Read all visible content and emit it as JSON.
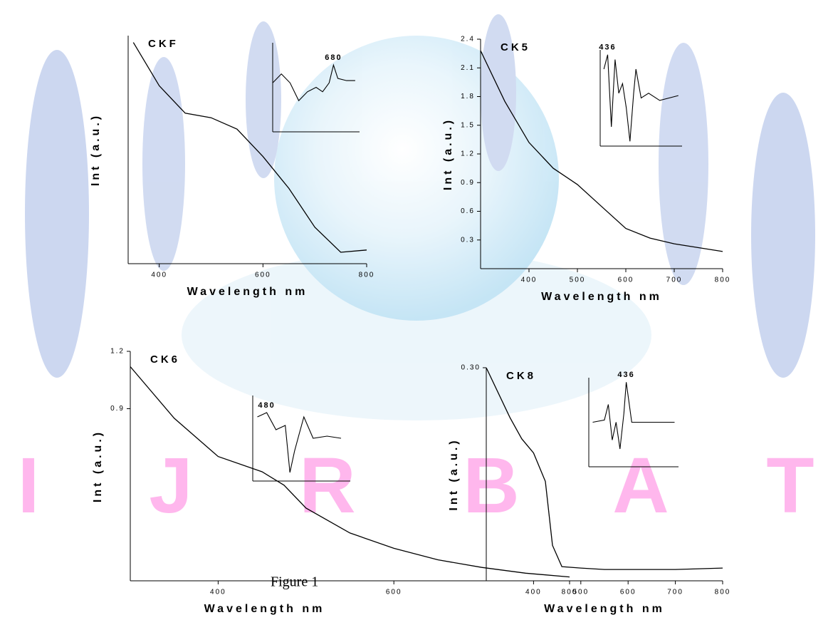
{
  "caption": "Figure 1",
  "watermark": [
    "I",
    "J",
    "R",
    "B",
    "A",
    "T"
  ],
  "chart_data": [
    {
      "type": "line",
      "title": "CKF",
      "x_label": "Wavelength nm",
      "y_label": "Int (a.u.)",
      "color": "#000000",
      "x": [
        350,
        400,
        450,
        500,
        550,
        600,
        650,
        700,
        750,
        800
      ],
      "values": [
        0.97,
        0.78,
        0.66,
        0.64,
        0.59,
        0.47,
        0.33,
        0.16,
        0.05,
        0.06
      ],
      "xlim": [
        340,
        800
      ],
      "xticks": [
        400,
        600,
        800
      ],
      "ylim": [
        0,
        1
      ],
      "inset": {
        "x": [
          400,
          440,
          480,
          520,
          560,
          600,
          630,
          660,
          680,
          700,
          740,
          780
        ],
        "values": [
          0.1,
          0.3,
          0.1,
          -0.3,
          -0.1,
          0,
          -0.1,
          0.1,
          0.5,
          0.2,
          0.15,
          0.15
        ],
        "xlim": [
          400,
          800
        ],
        "ylim": [
          -1,
          1
        ],
        "annotation": "680"
      }
    },
    {
      "type": "line",
      "title": "CK5",
      "x_label": "Wavelength nm",
      "y_label": "Int (a.u.)",
      "color": "#000000",
      "x": [
        300,
        350,
        400,
        450,
        500,
        550,
        600,
        650,
        700,
        750,
        800
      ],
      "values": [
        2.28,
        1.75,
        1.32,
        1.05,
        0.88,
        0.65,
        0.42,
        0.32,
        0.26,
        0.22,
        0.18
      ],
      "xlim": [
        300,
        800
      ],
      "xticks": [
        400,
        500,
        600,
        700,
        800
      ],
      "ylim": [
        0,
        2.4
      ],
      "yticks": [
        0.3,
        0.6,
        0.9,
        1.2,
        1.5,
        1.8,
        2.1,
        2.4
      ],
      "inset": {
        "x": [
          350,
          360,
          370,
          380,
          390,
          400,
          410,
          420,
          430,
          436,
          450,
          470,
          500,
          550
        ],
        "values": [
          0.6,
          0.9,
          -0.6,
          0.8,
          0.1,
          0.3,
          -0.2,
          -0.9,
          0.1,
          0.6,
          0.0,
          0.1,
          -0.05,
          0.05
        ],
        "xlim": [
          340,
          560
        ],
        "ylim": [
          -1,
          1
        ],
        "annotation": "436"
      }
    },
    {
      "type": "line",
      "title": "CK6",
      "x_label": "Wavelength nm",
      "y_label": "Int (a.u.)",
      "color": "#000000",
      "x": [
        300,
        350,
        400,
        450,
        475,
        500,
        550,
        600,
        650,
        700,
        750,
        800
      ],
      "values": [
        1.12,
        0.85,
        0.65,
        0.57,
        0.5,
        0.38,
        0.25,
        0.17,
        0.11,
        0.07,
        0.04,
        0.02
      ],
      "xlim": [
        300,
        800
      ],
      "xticks": [
        400,
        600,
        800
      ],
      "ylim": [
        0,
        1.2
      ],
      "yticks": [
        0.9,
        1.2
      ],
      "inset": {
        "x": [
          380,
          400,
          420,
          440,
          450,
          460,
          470,
          480,
          500,
          530,
          560
        ],
        "values": [
          0.5,
          0.6,
          0.2,
          0.3,
          -0.8,
          -0.3,
          0.1,
          0.5,
          0.0,
          0.05,
          0.0
        ],
        "xlim": [
          370,
          580
        ],
        "ylim": [
          -1,
          1
        ],
        "annotation": "480"
      }
    },
    {
      "type": "line",
      "title": "CK8",
      "x_label": "Wavelength nm",
      "y_label": "Int (a.u.)",
      "color": "#000000",
      "x": [
        300,
        350,
        375,
        400,
        425,
        440,
        460,
        500,
        550,
        600,
        700,
        800
      ],
      "values": [
        0.3,
        0.23,
        0.2,
        0.18,
        0.14,
        0.05,
        0.02,
        0.018,
        0.016,
        0.016,
        0.016,
        0.018
      ],
      "xlim": [
        300,
        800
      ],
      "xticks": [
        400,
        500,
        600,
        700,
        800
      ],
      "ylim": [
        0,
        0.3
      ],
      "yticks": [
        {
          "value": 0.3,
          "label": "0.30"
        }
      ],
      "inset": {
        "x": [
          350,
          380,
          390,
          400,
          410,
          420,
          430,
          436,
          450,
          480,
          520,
          560
        ],
        "values": [
          0.0,
          0.05,
          0.4,
          -0.4,
          0.0,
          -0.6,
          0.2,
          0.9,
          0.0,
          0.0,
          0.0,
          0.0
        ],
        "xlim": [
          340,
          570
        ],
        "ylim": [
          -1,
          1
        ],
        "annotation": "436"
      }
    }
  ]
}
